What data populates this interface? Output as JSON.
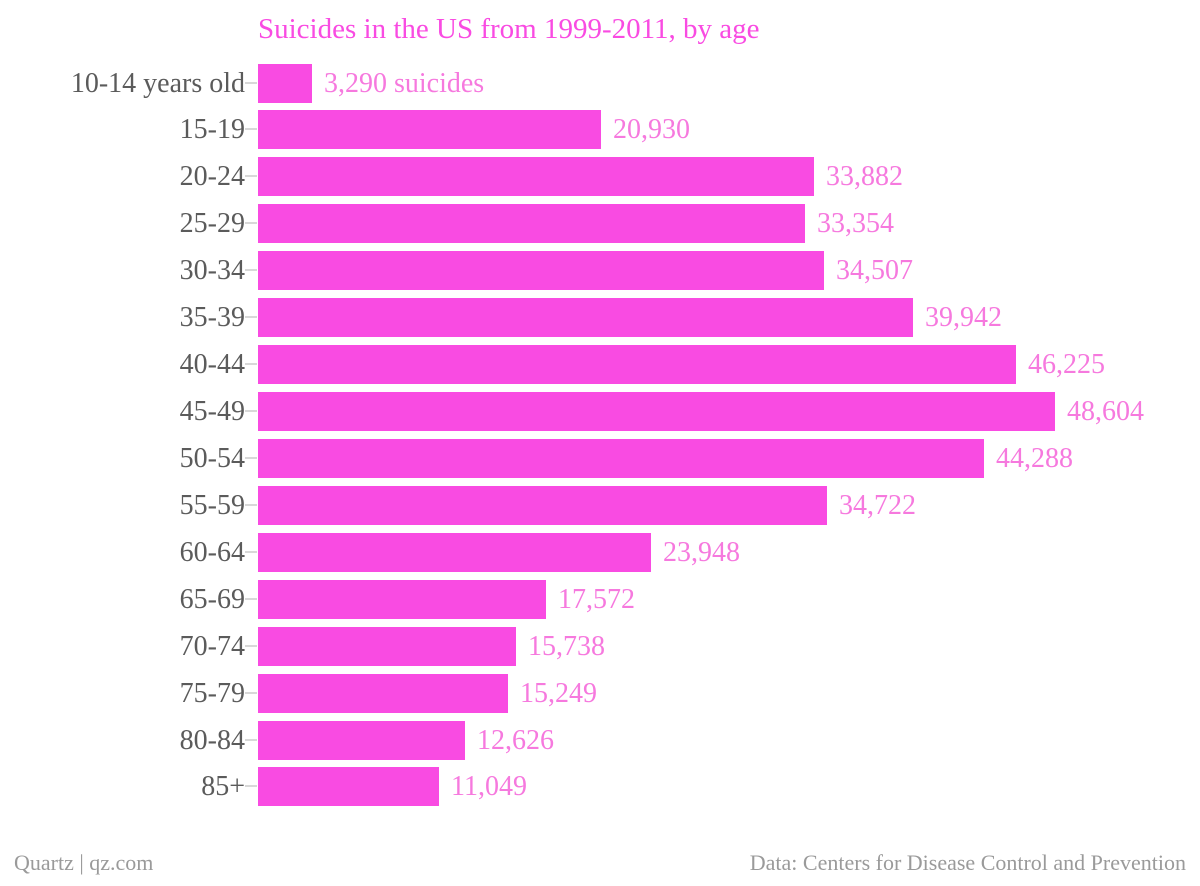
{
  "footer": {
    "source_left": "Quartz | qz.com",
    "source_right": "Data: Centers for Disease Control and Prevention"
  },
  "colors": {
    "background": "#FFFFFF",
    "bar": "#F94BE2",
    "title": "#F94BE2",
    "value_label": "#F679DE",
    "category_label": "#5B5B5B",
    "tick": "#D8D8D8",
    "footer_text": "#9A9A9A"
  },
  "chart_data": {
    "type": "bar",
    "orientation": "horizontal",
    "title": "Suicides in the US from 1999-2011, by age",
    "xlabel": "",
    "ylabel": "",
    "categories": [
      "10-14 years old",
      "15-19",
      "20-24",
      "25-29",
      "30-34",
      "35-39",
      "40-44",
      "45-49",
      "50-54",
      "55-59",
      "60-64",
      "65-69",
      "70-74",
      "75-79",
      "80-84",
      "85+"
    ],
    "values": [
      3290,
      20930,
      33882,
      33354,
      34507,
      39942,
      46225,
      48604,
      44288,
      34722,
      23948,
      17572,
      15738,
      15249,
      12626,
      11049
    ],
    "value_labels": [
      "3,290 suicides",
      "20,930",
      "33,882",
      "33,354",
      "34,507",
      "39,942",
      "46,225",
      "48,604",
      "44,288",
      "34,722",
      "23,948",
      "17,572",
      "15,738",
      "15,249",
      "12,626",
      "11,049"
    ],
    "xlim": [
      0,
      48604
    ],
    "grid": false,
    "legend": false,
    "value_label_position": "outside-end"
  }
}
